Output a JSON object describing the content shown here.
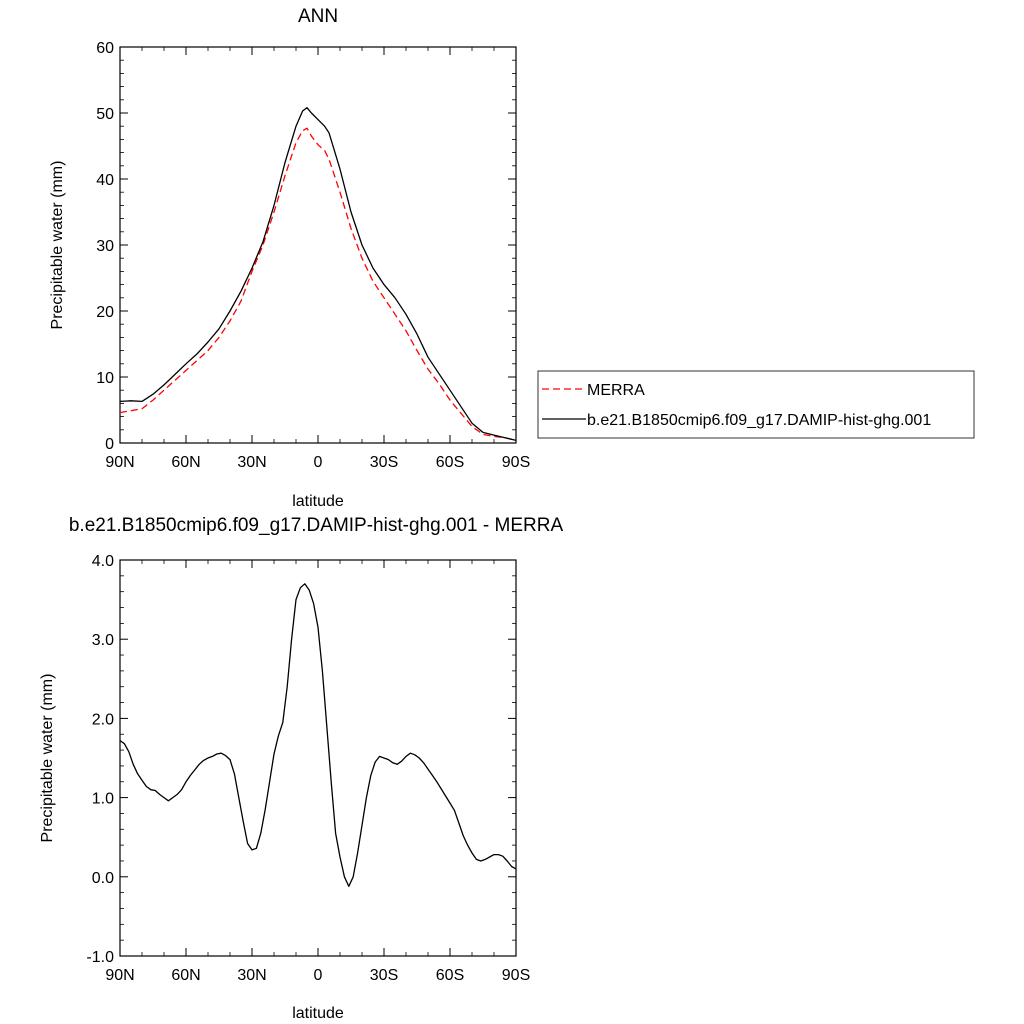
{
  "legend": {
    "entries": [
      {
        "label": "MERRA",
        "color": "#ff0000",
        "dash": "dashed"
      },
      {
        "label": "b.e21.B1850cmip6.f09_g17.DAMIP-hist-ghg.001",
        "color": "#000000",
        "dash": "solid"
      }
    ]
  },
  "chart_data": [
    {
      "type": "line",
      "title": "ANN",
      "xlabel": "latitude",
      "ylabel": "Precipitable water (mm)",
      "xlim": [
        90,
        -90
      ],
      "ylim": [
        0,
        60
      ],
      "x_ticks": [
        {
          "v": 90,
          "label": "90N"
        },
        {
          "v": 60,
          "label": "60N"
        },
        {
          "v": 30,
          "label": "30N"
        },
        {
          "v": 0,
          "label": "0"
        },
        {
          "v": -30,
          "label": "30S"
        },
        {
          "v": -60,
          "label": "60S"
        },
        {
          "v": -90,
          "label": "90S"
        }
      ],
      "y_ticks": [
        {
          "v": 0,
          "label": "0"
        },
        {
          "v": 10,
          "label": "10"
        },
        {
          "v": 20,
          "label": "20"
        },
        {
          "v": 30,
          "label": "30"
        },
        {
          "v": 40,
          "label": "40"
        },
        {
          "v": 50,
          "label": "50"
        },
        {
          "v": 60,
          "label": "60"
        }
      ],
      "series": [
        {
          "name": "MERRA",
          "color": "#ff0000",
          "dash": "dashed",
          "x": [
            90,
            85,
            80,
            75,
            70,
            65,
            60,
            55,
            50,
            45,
            40,
            35,
            30,
            25,
            20,
            15,
            10,
            7,
            5,
            3,
            0,
            -3,
            -5,
            -10,
            -15,
            -20,
            -25,
            -30,
            -35,
            -40,
            -45,
            -50,
            -55,
            -60,
            -65,
            -70,
            -75,
            -80,
            -85,
            -90
          ],
          "y": [
            4.6,
            4.9,
            5.2,
            6.5,
            8.0,
            9.5,
            11.0,
            12.5,
            14.0,
            16.0,
            18.5,
            21.5,
            26.0,
            30.0,
            35.0,
            40.5,
            45.5,
            47.3,
            47.7,
            46.5,
            45.2,
            44.3,
            43.0,
            38.0,
            32.5,
            28.0,
            24.5,
            22.0,
            19.5,
            17.0,
            14.0,
            11.2,
            9.0,
            6.5,
            4.5,
            2.5,
            1.3,
            1.0,
            0.8,
            0.4
          ]
        },
        {
          "name": "b.e21.B1850cmip6.f09_g17.DAMIP-hist-ghg.001",
          "color": "#000000",
          "dash": "solid",
          "x": [
            90,
            85,
            80,
            75,
            70,
            65,
            60,
            55,
            50,
            45,
            40,
            35,
            30,
            25,
            20,
            15,
            10,
            7,
            5,
            3,
            0,
            -3,
            -5,
            -10,
            -15,
            -20,
            -25,
            -30,
            -35,
            -40,
            -45,
            -50,
            -55,
            -60,
            -65,
            -70,
            -75,
            -80,
            -85,
            -90
          ],
          "y": [
            6.3,
            6.4,
            6.3,
            7.4,
            8.8,
            10.4,
            12.0,
            13.5,
            15.3,
            17.3,
            20.0,
            23.0,
            26.5,
            30.5,
            36.0,
            42.5,
            48.0,
            50.3,
            50.8,
            50.0,
            49.0,
            48.0,
            47.0,
            41.5,
            35.0,
            30.0,
            26.5,
            24.0,
            22.0,
            19.5,
            16.5,
            13.0,
            10.5,
            8.0,
            5.5,
            3.0,
            1.6,
            1.2,
            0.8,
            0.4
          ]
        }
      ]
    },
    {
      "type": "line",
      "title": "b.e21.B1850cmip6.f09_g17.DAMIP-hist-ghg.001 - MERRA",
      "xlabel": "latitude",
      "ylabel": "Precipitable water (mm)",
      "xlim": [
        90,
        -90
      ],
      "ylim": [
        -1.0,
        4.0
      ],
      "x_ticks": [
        {
          "v": 90,
          "label": "90N"
        },
        {
          "v": 60,
          "label": "60N"
        },
        {
          "v": 30,
          "label": "30N"
        },
        {
          "v": 0,
          "label": "0"
        },
        {
          "v": -30,
          "label": "30S"
        },
        {
          "v": -60,
          "label": "60S"
        },
        {
          "v": -90,
          "label": "90S"
        }
      ],
      "y_ticks": [
        {
          "v": -1.0,
          "label": "-1.0"
        },
        {
          "v": 0.0,
          "label": "0.0"
        },
        {
          "v": 1.0,
          "label": "1.0"
        },
        {
          "v": 2.0,
          "label": "2.0"
        },
        {
          "v": 3.0,
          "label": "3.0"
        },
        {
          "v": 4.0,
          "label": "4.0"
        }
      ],
      "series": [
        {
          "name": "b.e21.B1850cmip6.f09_g17.DAMIP-hist-ghg.001 - MERRA",
          "color": "#000000",
          "dash": "solid",
          "x": [
            90,
            88,
            86,
            84,
            82,
            80,
            78,
            76,
            74,
            72,
            70,
            68,
            66,
            64,
            62,
            60,
            58,
            56,
            54,
            52,
            50,
            48,
            46,
            44,
            42,
            40,
            38,
            36,
            34,
            32,
            30,
            28,
            26,
            24,
            22,
            20,
            18,
            16,
            14,
            12,
            10,
            8,
            6,
            4,
            2,
            0,
            -2,
            -4,
            -6,
            -8,
            -10,
            -12,
            -14,
            -16,
            -18,
            -20,
            -22,
            -24,
            -26,
            -28,
            -30,
            -32,
            -34,
            -36,
            -38,
            -40,
            -42,
            -44,
            -46,
            -48,
            -50,
            -52,
            -54,
            -56,
            -58,
            -60,
            -62,
            -64,
            -66,
            -68,
            -70,
            -72,
            -74,
            -76,
            -78,
            -80,
            -82,
            -84,
            -86,
            -88,
            -90
          ],
          "y": [
            1.72,
            1.68,
            1.58,
            1.42,
            1.3,
            1.22,
            1.14,
            1.1,
            1.09,
            1.04,
            1.0,
            0.96,
            1.0,
            1.04,
            1.1,
            1.2,
            1.28,
            1.35,
            1.42,
            1.47,
            1.5,
            1.52,
            1.55,
            1.56,
            1.53,
            1.48,
            1.3,
            1.0,
            0.7,
            0.42,
            0.34,
            0.36,
            0.55,
            0.85,
            1.2,
            1.55,
            1.78,
            1.95,
            2.4,
            3.0,
            3.5,
            3.65,
            3.7,
            3.62,
            3.45,
            3.15,
            2.6,
            1.9,
            1.2,
            0.55,
            0.25,
            0.0,
            -0.12,
            0.0,
            0.3,
            0.65,
            1.0,
            1.28,
            1.45,
            1.52,
            1.5,
            1.48,
            1.44,
            1.42,
            1.46,
            1.52,
            1.56,
            1.54,
            1.5,
            1.44,
            1.36,
            1.28,
            1.2,
            1.11,
            1.02,
            0.93,
            0.84,
            0.68,
            0.52,
            0.4,
            0.3,
            0.22,
            0.2,
            0.22,
            0.25,
            0.28,
            0.28,
            0.26,
            0.2,
            0.13,
            0.1
          ]
        }
      ]
    }
  ]
}
